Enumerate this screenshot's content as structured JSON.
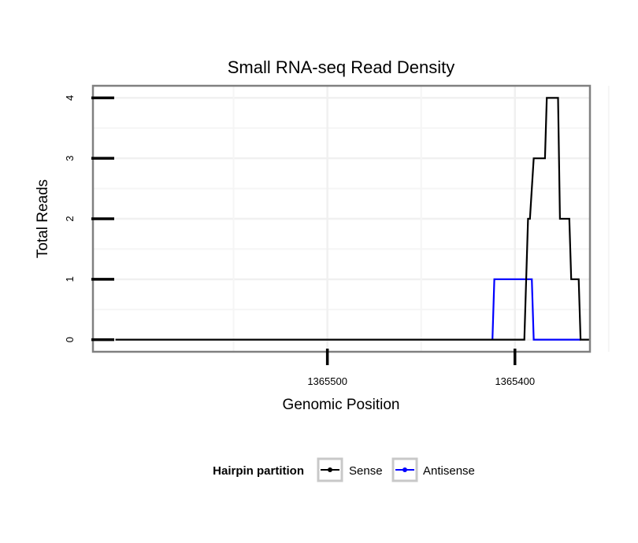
{
  "chart_data": {
    "type": "line",
    "title": "Small RNA-seq Read Density",
    "xlabel": "Genomic Position",
    "ylabel": "Total Reads",
    "x_reversed": true,
    "xlim": [
      1365625,
      1365360
    ],
    "ylim": [
      -0.2,
      4.2
    ],
    "x_ticks": [
      {
        "value": 1365500,
        "label": "1365500"
      },
      {
        "value": 1365400,
        "label": "1365400"
      }
    ],
    "y_ticks": [
      {
        "value": 0,
        "label": "0"
      },
      {
        "value": 1,
        "label": "1"
      },
      {
        "value": 2,
        "label": "2"
      },
      {
        "value": 3,
        "label": "3"
      },
      {
        "value": 4,
        "label": "4"
      }
    ],
    "grid": true,
    "legend": {
      "title": "Hairpin partition",
      "position": "bottom",
      "entries": [
        "Sense",
        "Antisense"
      ]
    },
    "series": [
      {
        "name": "Sense",
        "color": "#000000",
        "x": [
          1365613,
          1365395,
          1365393,
          1365392,
          1365390,
          1365384,
          1365383,
          1365377,
          1365376,
          1365371,
          1365370,
          1365366,
          1365365,
          1365360
        ],
        "y": [
          0,
          0,
          2,
          2,
          3,
          3,
          4,
          4,
          2,
          2,
          1,
          1,
          0,
          0
        ]
      },
      {
        "name": "Antisense",
        "color": "#0000ff",
        "x": [
          1365412,
          1365411,
          1365391,
          1365390,
          1365365
        ],
        "y": [
          0,
          1,
          1,
          0,
          0
        ]
      }
    ]
  }
}
